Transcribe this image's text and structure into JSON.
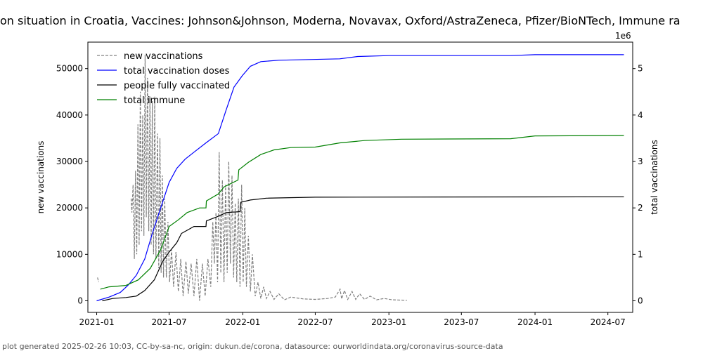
{
  "chart_data": {
    "type": "line",
    "title": "on situation in Croatia, Vaccines: Johnson&Johnson, Moderna, Novavax, Oxford/AstraZeneca, Pfizer/BioNTech, Immune ra",
    "ylabel": "new vaccinations",
    "y2label": "total vaccinations",
    "y2_offset_label": "1e6",
    "ylim": [
      -2500,
      55700
    ],
    "y2lim": [
      -0.25,
      5.57
    ],
    "xlim": [
      "2020-12-10",
      "2024-09-01"
    ],
    "xticks": [
      "2021-01",
      "2021-07",
      "2022-01",
      "2022-07",
      "2023-01",
      "2023-07",
      "2024-01",
      "2024-07"
    ],
    "yticks": [
      0,
      10000,
      20000,
      30000,
      40000,
      50000
    ],
    "y2ticks": [
      0,
      1,
      2,
      3,
      4,
      5
    ],
    "legend_position": "top-left",
    "series": [
      {
        "name": "new vaccinations",
        "axis": "left",
        "color": "#808080",
        "style": "dashed",
        "points": [
          [
            "2021-01-03",
            5000
          ],
          [
            "2021-01-06",
            4000
          ],
          [
            "2021-01-30",
            null
          ],
          [
            "2021-03-28",
            22000
          ],
          [
            "2021-03-30",
            19000
          ],
          [
            "2021-04-02",
            25000
          ],
          [
            "2021-04-05",
            9000
          ],
          [
            "2021-04-08",
            28000
          ],
          [
            "2021-04-11",
            10000
          ],
          [
            "2021-04-14",
            38000
          ],
          [
            "2021-04-17",
            12000
          ],
          [
            "2021-04-20",
            45000
          ],
          [
            "2021-04-23",
            15000
          ],
          [
            "2021-04-26",
            40000
          ],
          [
            "2021-04-29",
            14000
          ],
          [
            "2021-05-02",
            53000
          ],
          [
            "2021-05-05",
            18000
          ],
          [
            "2021-05-08",
            48000
          ],
          [
            "2021-05-11",
            15000
          ],
          [
            "2021-05-14",
            44000
          ],
          [
            "2021-05-17",
            12000
          ],
          [
            "2021-05-20",
            43000
          ],
          [
            "2021-05-23",
            10000
          ],
          [
            "2021-05-26",
            44000
          ],
          [
            "2021-05-29",
            9000
          ],
          [
            "2021-06-02",
            36000
          ],
          [
            "2021-06-05",
            7000
          ],
          [
            "2021-06-08",
            35000
          ],
          [
            "2021-06-11",
            6000
          ],
          [
            "2021-06-14",
            27000
          ],
          [
            "2021-06-17",
            5000
          ],
          [
            "2021-06-20",
            22000
          ],
          [
            "2021-06-24",
            5000
          ],
          [
            "2021-06-28",
            17000
          ],
          [
            "2021-07-02",
            4000
          ],
          [
            "2021-07-07",
            11000
          ],
          [
            "2021-07-12",
            3000
          ],
          [
            "2021-07-18",
            10500
          ],
          [
            "2021-07-24",
            2000
          ],
          [
            "2021-07-30",
            9000
          ],
          [
            "2021-08-05",
            1000
          ],
          [
            "2021-08-12",
            8500
          ],
          [
            "2021-08-18",
            1500
          ],
          [
            "2021-08-25",
            8000
          ],
          [
            "2021-09-01",
            1000
          ],
          [
            "2021-09-08",
            9000
          ],
          [
            "2021-09-15",
            0
          ],
          [
            "2021-09-22",
            8000
          ],
          [
            "2021-09-29",
            1000
          ],
          [
            "2021-10-06",
            9000
          ],
          [
            "2021-10-13",
            3000
          ],
          [
            "2021-10-18",
            17000
          ],
          [
            "2021-10-22",
            8000
          ],
          [
            "2021-10-26",
            19000
          ],
          [
            "2021-10-30",
            4000
          ],
          [
            "2021-11-03",
            32000
          ],
          [
            "2021-11-07",
            6000
          ],
          [
            "2021-11-11",
            26000
          ],
          [
            "2021-11-15",
            4000
          ],
          [
            "2021-11-19",
            25000
          ],
          [
            "2021-11-23",
            6000
          ],
          [
            "2021-11-27",
            30000
          ],
          [
            "2021-12-01",
            8000
          ],
          [
            "2021-12-05",
            27000
          ],
          [
            "2021-12-09",
            5000
          ],
          [
            "2021-12-13",
            21000
          ],
          [
            "2021-12-17",
            4000
          ],
          [
            "2021-12-21",
            22000
          ],
          [
            "2021-12-25",
            3000
          ],
          [
            "2021-12-29",
            25000
          ],
          [
            "2022-01-02",
            4000
          ],
          [
            "2022-01-06",
            20000
          ],
          [
            "2022-01-10",
            3000
          ],
          [
            "2022-01-15",
            14000
          ],
          [
            "2022-01-20",
            2000
          ],
          [
            "2022-01-25",
            10000
          ],
          [
            "2022-02-01",
            1000
          ],
          [
            "2022-02-08",
            4000
          ],
          [
            "2022-02-15",
            500
          ],
          [
            "2022-02-22",
            3000
          ],
          [
            "2022-03-01",
            500
          ],
          [
            "2022-03-10",
            2000
          ],
          [
            "2022-03-20",
            300
          ],
          [
            "2022-04-01",
            1500
          ],
          [
            "2022-04-15",
            200
          ],
          [
            "2022-05-01",
            800
          ],
          [
            "2022-06-01",
            400
          ],
          [
            "2022-07-01",
            300
          ],
          [
            "2022-08-01",
            500
          ],
          [
            "2022-08-20",
            800
          ],
          [
            "2022-09-01",
            2500
          ],
          [
            "2022-09-05",
            400
          ],
          [
            "2022-09-12",
            2200
          ],
          [
            "2022-09-20",
            300
          ],
          [
            "2022-10-01",
            2000
          ],
          [
            "2022-10-10",
            300
          ],
          [
            "2022-10-20",
            1500
          ],
          [
            "2022-11-01",
            300
          ],
          [
            "2022-11-15",
            1000
          ],
          [
            "2022-12-01",
            200
          ],
          [
            "2022-12-20",
            500
          ],
          [
            "2023-01-10",
            200
          ],
          [
            "2023-02-15",
            100
          ]
        ]
      },
      {
        "name": "total vaccination doses",
        "axis": "right",
        "color": "#0000ff",
        "style": "solid",
        "points": [
          [
            "2021-01-01",
            0
          ],
          [
            "2021-02-01",
            0.08
          ],
          [
            "2021-03-01",
            0.18
          ],
          [
            "2021-03-20",
            0.33
          ],
          [
            "2021-04-10",
            0.55
          ],
          [
            "2021-05-01",
            0.9
          ],
          [
            "2021-05-20",
            1.45
          ],
          [
            "2021-06-10",
            2.0
          ],
          [
            "2021-07-01",
            2.55
          ],
          [
            "2021-07-20",
            2.85
          ],
          [
            "2021-08-10",
            3.05
          ],
          [
            "2021-09-01",
            3.2
          ],
          [
            "2021-10-01",
            3.4
          ],
          [
            "2021-11-01",
            3.6
          ],
          [
            "2021-11-20",
            4.1
          ],
          [
            "2021-12-10",
            4.6
          ],
          [
            "2021-12-31",
            4.85
          ],
          [
            "2022-01-20",
            5.05
          ],
          [
            "2022-02-15",
            5.15
          ],
          [
            "2022-04-01",
            5.18
          ],
          [
            "2022-08-31",
            5.21
          ],
          [
            "2022-10-15",
            5.26
          ],
          [
            "2023-01-01",
            5.28
          ],
          [
            "2023-11-01",
            5.28
          ],
          [
            "2024-01-01",
            5.3
          ],
          [
            "2024-08-10",
            5.3
          ]
        ]
      },
      {
        "name": "people fully vaccinated",
        "axis": "right",
        "color": "#000000",
        "style": "solid",
        "points": [
          [
            "2021-01-15",
            0
          ],
          [
            "2021-02-10",
            0.05
          ],
          [
            "2021-03-15",
            0.07
          ],
          [
            "2021-04-10",
            0.1
          ],
          [
            "2021-05-01",
            0.22
          ],
          [
            "2021-05-25",
            0.45
          ],
          [
            "2021-06-15",
            0.85
          ],
          [
            "2021-07-01",
            1.05
          ],
          [
            "2021-07-20",
            1.25
          ],
          [
            "2021-08-01",
            1.45
          ],
          [
            "2021-09-01",
            1.6
          ],
          [
            "2021-10-01",
            1.6
          ],
          [
            "2021-10-02",
            1.72
          ],
          [
            "2021-11-01",
            1.82
          ],
          [
            "2021-11-20",
            1.9
          ],
          [
            "2021-12-25",
            1.92
          ],
          [
            "2021-12-27",
            2.12
          ],
          [
            "2022-01-20",
            2.17
          ],
          [
            "2022-03-01",
            2.21
          ],
          [
            "2022-07-01",
            2.23
          ],
          [
            "2024-08-10",
            2.24
          ]
        ]
      },
      {
        "name": "total immune",
        "axis": "right",
        "color": "#008000",
        "style": "solid",
        "points": [
          [
            "2021-01-10",
            0.25
          ],
          [
            "2021-02-01",
            0.3
          ],
          [
            "2021-03-15",
            0.33
          ],
          [
            "2021-04-15",
            0.45
          ],
          [
            "2021-05-15",
            0.7
          ],
          [
            "2021-06-10",
            1.1
          ],
          [
            "2021-07-01",
            1.6
          ],
          [
            "2021-07-25",
            1.75
          ],
          [
            "2021-08-15",
            1.9
          ],
          [
            "2021-09-15",
            2.0
          ],
          [
            "2021-10-01",
            2.0
          ],
          [
            "2021-10-02",
            2.15
          ],
          [
            "2021-11-01",
            2.3
          ],
          [
            "2021-11-15",
            2.45
          ],
          [
            "2021-12-20",
            2.6
          ],
          [
            "2021-12-22",
            2.82
          ],
          [
            "2022-01-15",
            2.98
          ],
          [
            "2022-02-15",
            3.15
          ],
          [
            "2022-03-20",
            3.25
          ],
          [
            "2022-05-01",
            3.3
          ],
          [
            "2022-07-01",
            3.31
          ],
          [
            "2022-09-01",
            3.4
          ],
          [
            "2022-11-01",
            3.45
          ],
          [
            "2023-02-01",
            3.48
          ],
          [
            "2023-11-01",
            3.49
          ],
          [
            "2024-01-01",
            3.55
          ],
          [
            "2024-08-10",
            3.56
          ]
        ]
      }
    ]
  },
  "footer": "plot generated 2025-02-26 10:03, CC-by-sa-nc, origin: dukun.de/corona, datasource: ourworldindata.org/coronavirus-source-data"
}
